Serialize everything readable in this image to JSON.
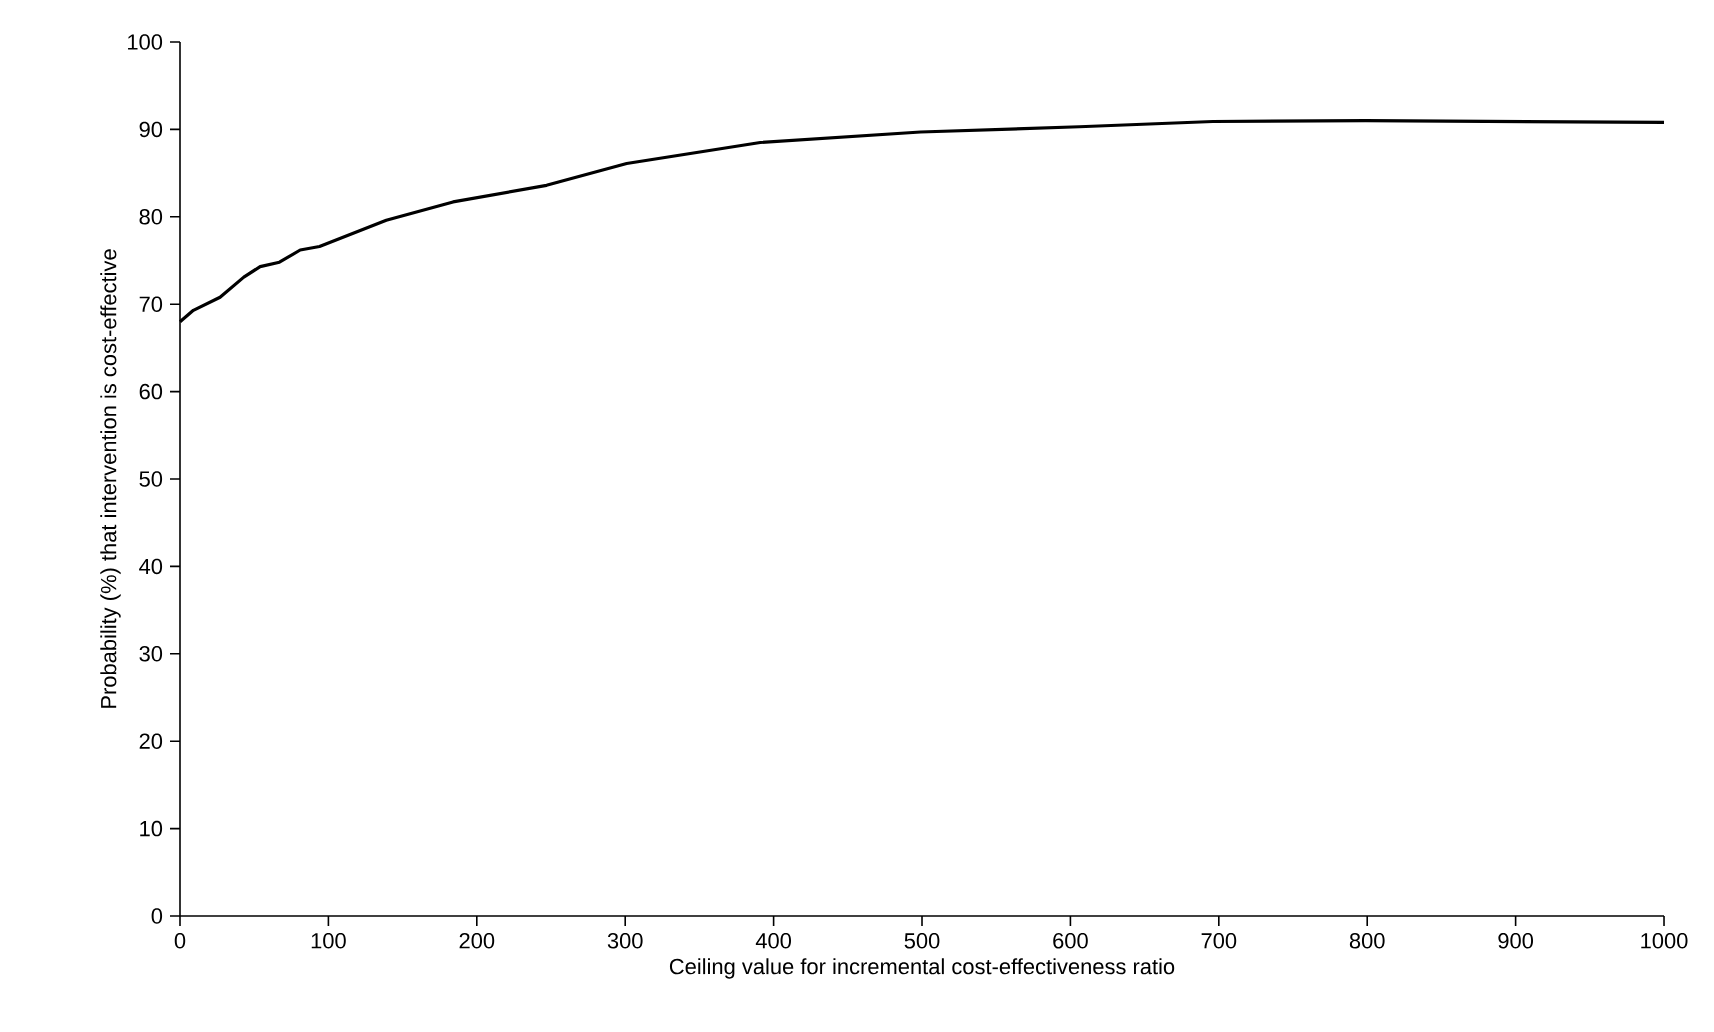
{
  "chart_data": {
    "type": "line",
    "xlabel": "Ceiling value for incremental cost-effectiveness ratio",
    "ylabel": "Probability (%) that intervention is cost-effective",
    "x": [
      0,
      9,
      27,
      43,
      54,
      67,
      81,
      94,
      139,
      184,
      247,
      301,
      391,
      499,
      606,
      696,
      799,
      1000
    ],
    "series": [
      {
        "color": "#000000",
        "values": [
          68,
          69.3,
          70.8,
          73.1,
          74.3,
          74.8,
          76.2,
          76.6,
          79.6,
          81.7,
          83.6,
          86.1,
          88.5,
          89.7,
          90.3,
          90.9,
          91.0,
          90.8
        ]
      }
    ],
    "xlim": [
      0,
      1000
    ],
    "ylim": [
      0,
      100
    ],
    "xticks": [
      0,
      100,
      200,
      300,
      400,
      500,
      600,
      700,
      800,
      900,
      1000
    ],
    "yticks": [
      0,
      10,
      20,
      30,
      40,
      50,
      60,
      70,
      80,
      90,
      100
    ],
    "marker": "none",
    "line_style": "solid"
  }
}
